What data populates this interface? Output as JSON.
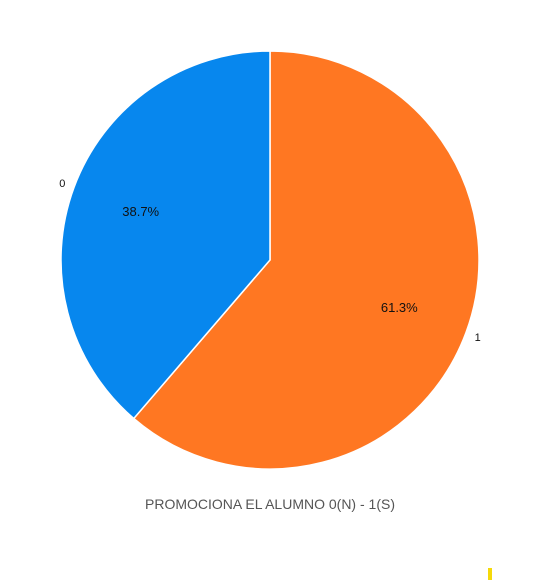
{
  "chart_data": {
    "type": "pie",
    "title": "",
    "caption": "PROMOCIONA EL ALUMNO 0(N) - 1(S)",
    "slices": [
      {
        "label": "0",
        "value": 38.7,
        "pct_label": "38.7%",
        "color": "#0787ee"
      },
      {
        "label": "1",
        "value": 61.3,
        "pct_label": "61.3%",
        "color": "#ff7722"
      }
    ],
    "start_angle_deg": 0,
    "direction": "clockwise",
    "legend": "none"
  },
  "colors": {
    "caption": "#555555",
    "corner_mark": "#f5d90a"
  }
}
